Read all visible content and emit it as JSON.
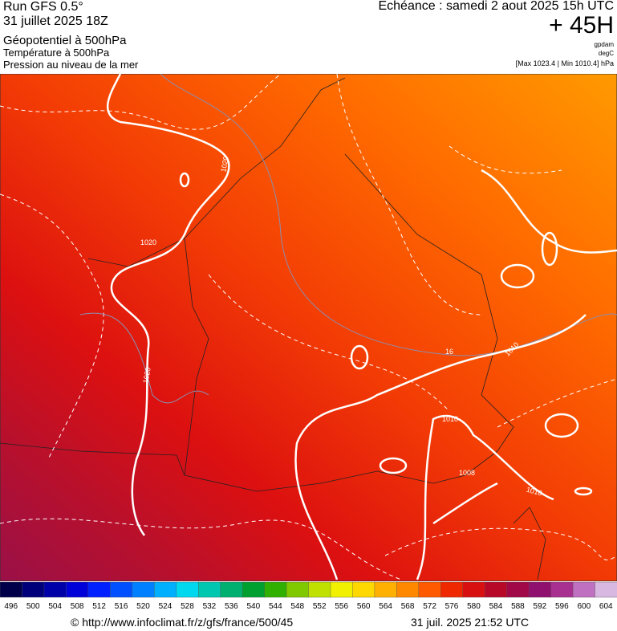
{
  "header": {
    "run": "Run GFS 0.5°",
    "run_date": "31 juillet 2025 18Z",
    "field_1": "Géopotentiel à 500hPa",
    "field_2": "Température à 500hPa",
    "field_3": "Pression au niveau de la mer",
    "valid_time": "Echéance : samedi 2 aout 2025 15h UTC",
    "lead": "+ 45H",
    "unit_1": "gpdam",
    "unit_2": "degC",
    "range": "[Max 1023.4 | Min 1010.4] hPa"
  },
  "contour_labels": [
    "1020",
    "1020",
    "1020",
    "1010",
    "1010",
    "1008",
    "1010",
    "16"
  ],
  "scale": {
    "labels": [
      "496",
      "500",
      "504",
      "508",
      "512",
      "516",
      "520",
      "524",
      "528",
      "532",
      "536",
      "540",
      "544",
      "548",
      "552",
      "556",
      "560",
      "564",
      "568",
      "572",
      "576",
      "580",
      "584",
      "588",
      "592",
      "596",
      "600",
      "604"
    ]
  },
  "footer": {
    "source": "© http://www.infoclimat.fr/z/gfs/france/500/45",
    "created": "31 juil. 2025 21:52 UTC"
  }
}
